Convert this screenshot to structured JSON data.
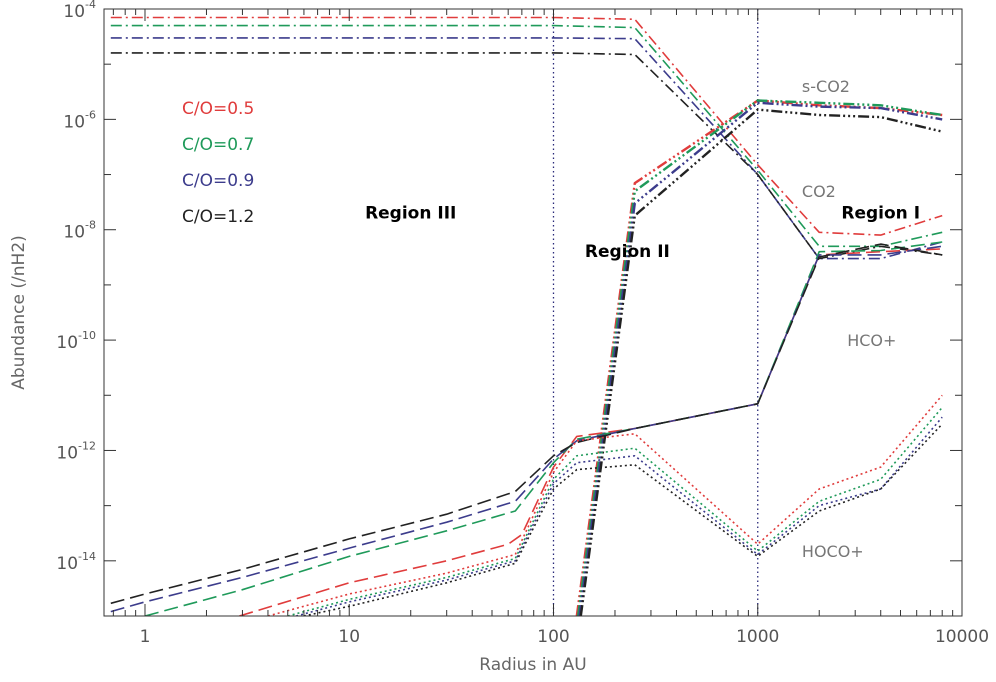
{
  "chart_data": {
    "type": "line",
    "xlabel": "Radius in AU",
    "ylabel": "Abundance (/nH2)",
    "xscale": "log",
    "yscale": "log",
    "xlim": [
      0.63,
      10000
    ],
    "ylim": [
      1e-15,
      0.0001
    ],
    "x_ticks": [
      1,
      10,
      100,
      1000,
      10000
    ],
    "x_tick_labels": [
      "1",
      "10",
      "100",
      "1000",
      "10000"
    ],
    "y_ticks": [
      1e-14,
      1e-12,
      1e-10,
      1e-08,
      1e-06,
      0.0001
    ],
    "y_tick_labels": [
      {
        "base": "10",
        "exp": "-14"
      },
      {
        "base": "10",
        "exp": "-12"
      },
      {
        "base": "10",
        "exp": "-10"
      },
      {
        "base": "10",
        "exp": "-8"
      },
      {
        "base": "10",
        "exp": "-6"
      },
      {
        "base": "10",
        "exp": "-4"
      }
    ],
    "grid": false,
    "legend_position": "top-left",
    "legend": [
      {
        "label": "C/O=0.5",
        "color": "#e03c3c"
      },
      {
        "label": "C/O=0.7",
        "color": "#1f9a5a"
      },
      {
        "label": "C/O=0.9",
        "color": "#3c3c8c"
      },
      {
        "label": "C/O=1.2",
        "color": "#222222"
      }
    ],
    "vlines": [
      100,
      1000
    ],
    "species_labels": [
      {
        "text": "s-CO2",
        "x": 1200,
        "y": 4e-06
      },
      {
        "text": "CO2",
        "x": 1200,
        "y": 5e-08
      },
      {
        "text": "HCO+",
        "x": 2000,
        "y": 1e-10
      },
      {
        "text": "HOCO+",
        "x": 1200,
        "y": 1.5e-14
      }
    ],
    "region_labels": [
      {
        "text": "Region III",
        "x": 20,
        "y": 1.6e-08
      },
      {
        "text": "Region II",
        "x": 230,
        "y": 3.2e-09
      },
      {
        "text": "Region I",
        "x": 4000,
        "y": 1.6e-08
      }
    ],
    "series": [
      {
        "species": "s-CO2",
        "co": "0.5",
        "style": "dashdot",
        "color": "#e03c3c",
        "x": [
          0.68,
          100,
          250,
          1000,
          2000,
          4000,
          8000
        ],
        "y": [
          7e-05,
          7e-05,
          6.5e-05,
          1.5e-07,
          9e-09,
          8e-09,
          1.8e-08
        ]
      },
      {
        "species": "s-CO2",
        "co": "0.7",
        "style": "dashdot",
        "color": "#1f9a5a",
        "x": [
          0.68,
          100,
          250,
          1000,
          2000,
          4000,
          8000
        ],
        "y": [
          5e-05,
          5e-05,
          4.6e-05,
          1.2e-07,
          5e-09,
          5e-09,
          9e-09
        ]
      },
      {
        "species": "s-CO2",
        "co": "0.9",
        "style": "dashdot",
        "color": "#3c3c8c",
        "x": [
          0.68,
          100,
          250,
          1000,
          2000,
          4000,
          8000
        ],
        "y": [
          3e-05,
          3e-05,
          2.9e-05,
          1e-07,
          3e-09,
          3e-09,
          6e-09
        ]
      },
      {
        "species": "s-CO2",
        "co": "1.2",
        "style": "dashdot",
        "color": "#222222",
        "x": [
          0.68,
          100,
          250,
          1000,
          2000,
          4000,
          8000
        ],
        "y": [
          1.6e-05,
          1.6e-05,
          1.5e-05,
          1e-07,
          3e-09,
          5e-09,
          3.5e-09
        ]
      },
      {
        "species": "CO2",
        "co": "0.5",
        "style": "dashdotdotdot",
        "color": "#e03c3c",
        "x": [
          130,
          250,
          1000,
          2000,
          4000,
          8000
        ],
        "y": [
          1e-15,
          7e-08,
          2.2e-06,
          1.8e-06,
          1.6e-06,
          1.2e-06
        ]
      },
      {
        "species": "CO2",
        "co": "0.7",
        "style": "dashdotdotdot",
        "color": "#1f9a5a",
        "x": [
          132,
          250,
          1000,
          2000,
          4000,
          8000
        ],
        "y": [
          1e-15,
          5e-08,
          2.2e-06,
          2e-06,
          1.8e-06,
          1.2e-06
        ]
      },
      {
        "species": "CO2",
        "co": "0.9",
        "style": "dashdotdotdot",
        "color": "#3c3c8c",
        "x": [
          134,
          250,
          1000,
          2000,
          4000,
          8000
        ],
        "y": [
          1e-15,
          3e-08,
          2e-06,
          1.7e-06,
          1.6e-06,
          1e-06
        ]
      },
      {
        "species": "CO2",
        "co": "1.2",
        "style": "dashdotdotdot",
        "color": "#222222",
        "x": [
          136,
          250,
          1000,
          2000,
          4000,
          8000
        ],
        "y": [
          1e-15,
          1.8e-08,
          1.5e-06,
          1.2e-06,
          1.1e-06,
          6e-07
        ]
      },
      {
        "species": "HCO+",
        "co": "0.5",
        "style": "longdash",
        "color": "#e03c3c",
        "x": [
          2.9,
          10,
          30,
          60,
          70,
          100,
          130,
          250,
          1000,
          2000,
          4000,
          8000
        ],
        "y": [
          1e-15,
          4e-15,
          1e-14,
          2e-14,
          3e-14,
          5e-13,
          1.8e-12,
          2.5e-12,
          7e-12,
          3.5e-09,
          4e-09,
          4.5e-09
        ]
      },
      {
        "species": "HCO+",
        "co": "0.7",
        "style": "longdash",
        "color": "#1f9a5a",
        "x": [
          1,
          3,
          10,
          30,
          65,
          100,
          130,
          250,
          1000,
          2000,
          4000,
          8000
        ],
        "y": [
          1e-15,
          3e-15,
          1.2e-14,
          3.5e-14,
          8e-14,
          6e-13,
          1.6e-12,
          2.5e-12,
          7e-12,
          4e-09,
          4.2e-09,
          6e-09
        ]
      },
      {
        "species": "HCO+",
        "co": "0.9",
        "style": "longdash",
        "color": "#3c3c8c",
        "x": [
          0.68,
          1,
          3,
          10,
          30,
          65,
          100,
          130,
          250,
          1000,
          2000,
          4000,
          8000
        ],
        "y": [
          1.2e-15,
          1.8e-15,
          5e-15,
          1.7e-14,
          5e-14,
          1.2e-13,
          7e-13,
          1.5e-12,
          2.5e-12,
          7e-12,
          3.5e-09,
          3.5e-09,
          5e-09
        ]
      },
      {
        "species": "HCO+",
        "co": "1.2",
        "style": "longdash",
        "color": "#222222",
        "x": [
          0.68,
          1,
          3,
          10,
          30,
          65,
          100,
          130,
          250,
          1000,
          2000,
          4000,
          8000
        ],
        "y": [
          1.7e-15,
          2.5e-15,
          7e-15,
          2.5e-14,
          7e-14,
          1.8e-13,
          8e-13,
          1.4e-12,
          2.5e-12,
          7e-12,
          3.2e-09,
          5.5e-09,
          3.5e-09
        ]
      },
      {
        "species": "HOCO+",
        "co": "0.5",
        "style": "dotted",
        "color": "#e03c3c",
        "x": [
          4,
          10,
          30,
          65,
          100,
          130,
          250,
          1000,
          2000,
          4000,
          8000
        ],
        "y": [
          1e-15,
          2.5e-15,
          6e-15,
          1.3e-14,
          4e-13,
          1.5e-12,
          2e-12,
          2e-14,
          2e-13,
          5e-13,
          1e-11
        ]
      },
      {
        "species": "HOCO+",
        "co": "0.7",
        "style": "dotted",
        "color": "#1f9a5a",
        "x": [
          5,
          10,
          30,
          65,
          100,
          130,
          250,
          1000,
          2000,
          4000,
          8000
        ],
        "y": [
          1e-15,
          2e-15,
          5e-15,
          1.1e-14,
          3e-13,
          8e-13,
          1.1e-12,
          1.5e-14,
          1.2e-13,
          3e-13,
          6e-12
        ]
      },
      {
        "species": "HOCO+",
        "co": "0.9",
        "style": "dotted",
        "color": "#3c3c8c",
        "x": [
          5.5,
          10,
          30,
          65,
          100,
          130,
          250,
          1000,
          2000,
          4000,
          8000
        ],
        "y": [
          1e-15,
          1.8e-15,
          4.5e-15,
          1e-14,
          2.5e-13,
          6e-13,
          8e-13,
          1.3e-14,
          1e-13,
          2e-13,
          4e-12
        ]
      },
      {
        "species": "HOCO+",
        "co": "1.2",
        "style": "dotted",
        "color": "#222222",
        "x": [
          6,
          10,
          30,
          65,
          100,
          130,
          250,
          1000,
          2000,
          4000,
          8000
        ],
        "y": [
          1e-15,
          1.5e-15,
          4e-15,
          9e-15,
          2e-13,
          4.5e-13,
          5.5e-13,
          1.2e-14,
          8e-14,
          2e-13,
          3e-12
        ]
      }
    ]
  }
}
